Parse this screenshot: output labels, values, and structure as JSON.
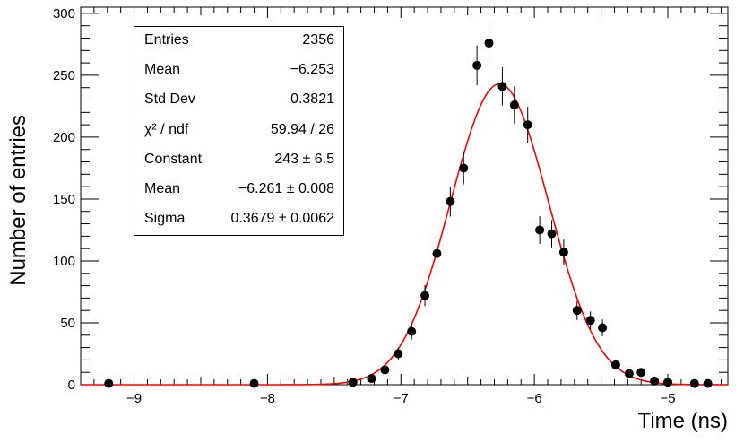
{
  "chart_data": {
    "type": "scatter",
    "title": "",
    "xlabel": "Time (ns)",
    "ylabel": "Number of entries",
    "xlim": [
      -9.4,
      -4.55
    ],
    "ylim": [
      0,
      305
    ],
    "xticks": [
      -9,
      -8,
      -7,
      -6,
      -5
    ],
    "xtick_labels": [
      "−9",
      "−8",
      "−7",
      "−6",
      "−5"
    ],
    "yticks": [
      0,
      50,
      100,
      150,
      200,
      250,
      300
    ],
    "ytick_labels": [
      "0",
      "50",
      "100",
      "150",
      "200",
      "250",
      "300"
    ],
    "grid": false,
    "series": [
      {
        "type": "points-with-error-bars",
        "color": "#000000",
        "x": [
          -9.19,
          -8.1,
          -7.36,
          -7.22,
          -7.12,
          -7.02,
          -6.92,
          -6.82,
          -6.73,
          -6.63,
          -6.53,
          -6.43,
          -6.34,
          -6.24,
          -6.15,
          -6.05,
          -5.96,
          -5.87,
          -5.78,
          -5.68,
          -5.58,
          -5.49,
          -5.39,
          -5.29,
          -5.2,
          -5.1,
          -5.0,
          -4.8,
          -4.7
        ],
        "y": [
          1,
          1,
          2,
          5,
          12,
          25,
          43,
          72,
          106,
          148,
          175,
          258,
          276,
          241,
          226,
          210,
          125,
          122,
          107,
          60,
          52,
          46,
          16,
          9,
          10,
          3,
          2,
          1,
          1
        ],
        "err": [
          1,
          1,
          1.4,
          2.2,
          3.5,
          5,
          6.6,
          8.5,
          10.3,
          12.2,
          13.2,
          16.1,
          16.6,
          15.5,
          15,
          14.5,
          11.2,
          11,
          10.3,
          7.7,
          7.2,
          6.8,
          4,
          3,
          3.2,
          1.7,
          1.4,
          1,
          1
        ]
      },
      {
        "type": "gaussian-fit",
        "color": "#ff0000",
        "constant": 243,
        "mean": -6.261,
        "sigma": 0.3679,
        "x_range": [
          -9.4,
          -4.55
        ]
      }
    ]
  },
  "stats": {
    "rows": [
      {
        "key": "Entries",
        "value": "2356"
      },
      {
        "key": "Mean",
        "value": "−6.253"
      },
      {
        "key": "Std Dev",
        "value": "0.3821"
      },
      {
        "key": "χ² / ndf",
        "value": "59.94 / 26"
      },
      {
        "key": "Constant",
        "value": "243 ± 6.5"
      },
      {
        "key": "Mean",
        "value": "−6.261 ± 0.008"
      },
      {
        "key": "Sigma",
        "value": "0.3679 ± 0.0062"
      }
    ]
  }
}
